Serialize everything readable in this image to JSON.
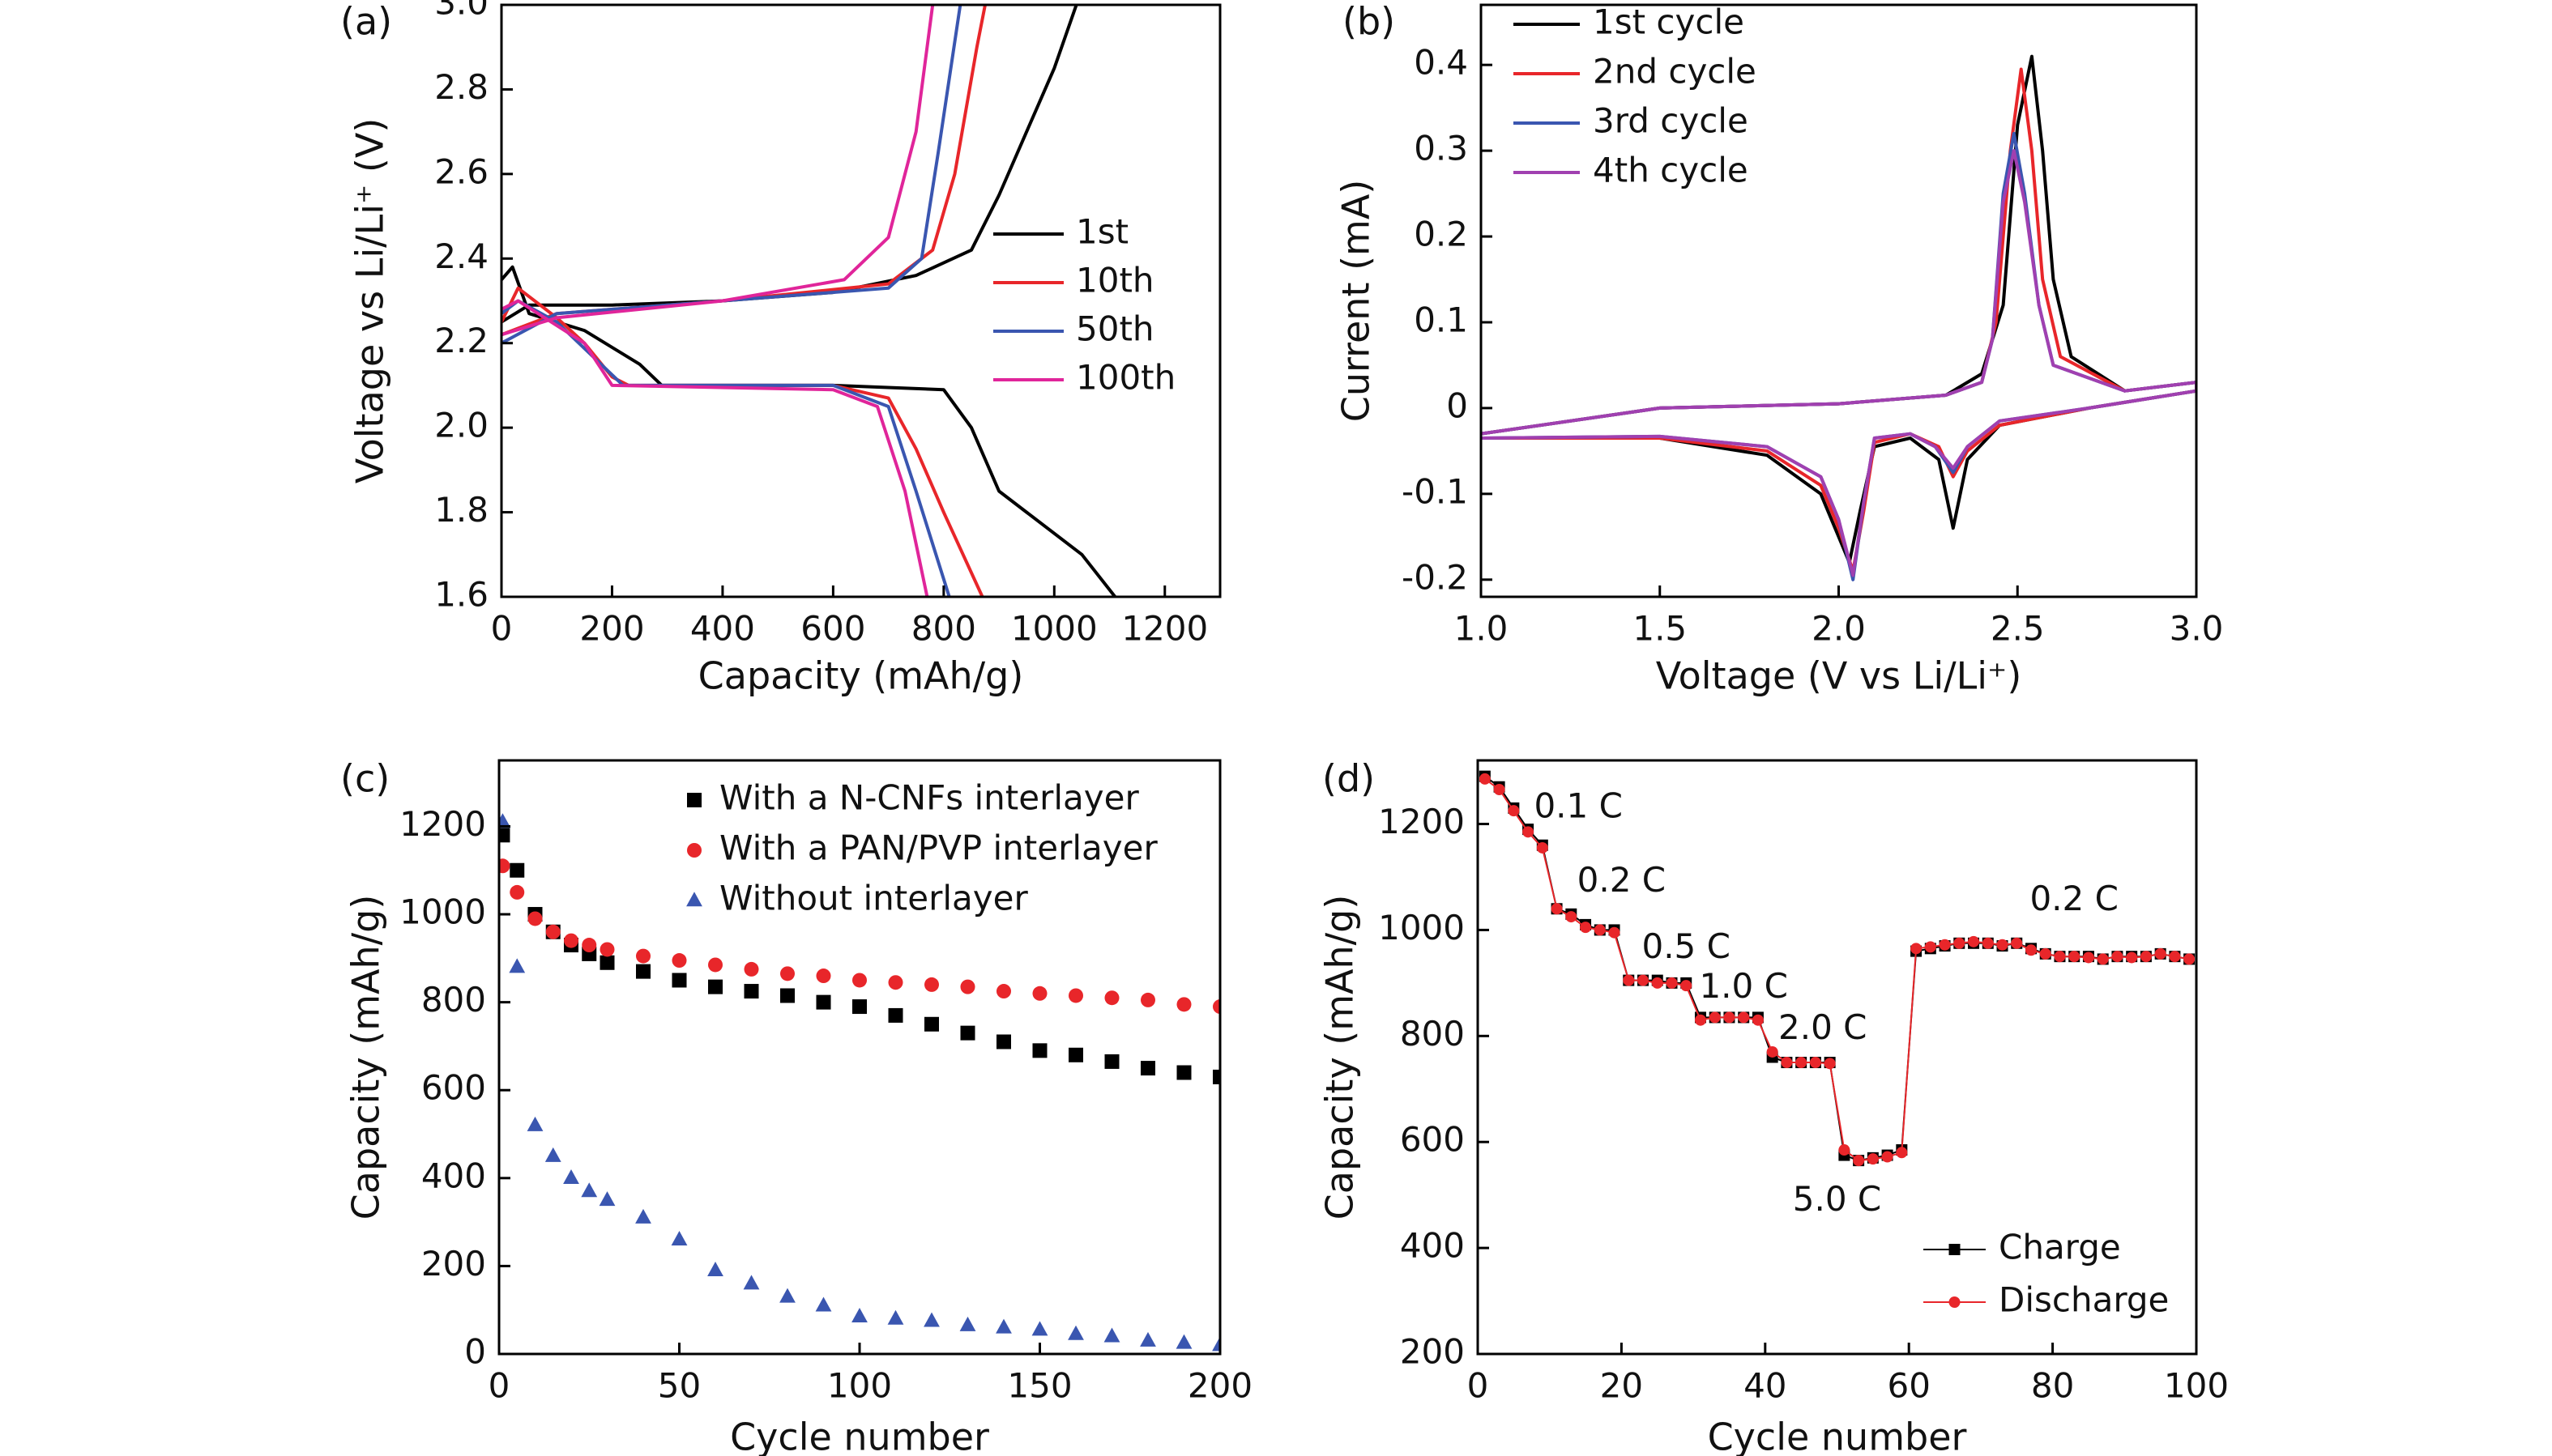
{
  "chart_data": [
    {
      "type": "line",
      "label": "(a)",
      "xlabel": "Capacity (mAh/g)",
      "ylabel": "Voltage vs Li/Li⁺ (V)",
      "xlim": [
        0,
        1300
      ],
      "ylim": [
        1.6,
        3.0
      ],
      "xticks": [
        0,
        200,
        400,
        600,
        800,
        1000,
        1200
      ],
      "yticks": [
        1.6,
        1.8,
        {
          "value": 2,
          "label": "2.0"
        },
        2.2,
        2.4,
        2.6,
        2.8,
        {
          "value": 3,
          "label": "3.0"
        }
      ],
      "series": [
        {
          "name": "1st",
          "color": "#000000",
          "x": [
            0,
            20,
            50,
            150,
            250,
            290,
            400,
            600,
            800,
            850,
            900,
            950,
            1050,
            1110,
            null,
            0,
            50,
            200,
            400,
            600,
            750,
            850,
            900,
            950,
            1000,
            1040
          ],
          "values": [
            2.35,
            2.38,
            2.27,
            2.23,
            2.15,
            2.1,
            2.1,
            2.1,
            2.09,
            2.0,
            1.85,
            1.8,
            1.7,
            1.6,
            null,
            2.25,
            2.29,
            2.29,
            2.3,
            2.32,
            2.36,
            2.42,
            2.55,
            2.7,
            2.85,
            3.0
          ]
        },
        {
          "name": "10th",
          "color": "#e8262a",
          "x": [
            0,
            30,
            100,
            150,
            200,
            230,
            600,
            700,
            750,
            800,
            870,
            null,
            0,
            100,
            400,
            700,
            780,
            820,
            860,
            875
          ],
          "values": [
            2.25,
            2.33,
            2.26,
            2.2,
            2.12,
            2.1,
            2.1,
            2.07,
            1.95,
            1.8,
            1.6,
            null,
            2.22,
            2.27,
            2.3,
            2.34,
            2.42,
            2.6,
            2.9,
            3.0
          ]
        },
        {
          "name": "50th",
          "color": "#3a56b0",
          "x": [
            0,
            30,
            100,
            180,
            220,
            600,
            700,
            750,
            810,
            null,
            0,
            100,
            400,
            700,
            760,
            790,
            830
          ],
          "values": [
            2.27,
            2.3,
            2.25,
            2.15,
            2.1,
            2.1,
            2.05,
            1.85,
            1.6,
            null,
            2.2,
            2.27,
            2.3,
            2.33,
            2.4,
            2.65,
            3.0
          ]
        },
        {
          "name": "100th",
          "color": "#e0259a",
          "x": [
            0,
            30,
            150,
            200,
            600,
            680,
            730,
            770,
            null,
            0,
            100,
            400,
            620,
            700,
            750,
            780
          ],
          "values": [
            2.28,
            2.3,
            2.2,
            2.1,
            2.09,
            2.05,
            1.85,
            1.6,
            null,
            2.22,
            2.26,
            2.3,
            2.35,
            2.45,
            2.7,
            3.0
          ]
        }
      ]
    },
    {
      "type": "line",
      "label": "(b)",
      "xlabel": "Voltage (V vs Li/Li⁺)",
      "ylabel": "Current (mA)",
      "xlim": [
        1.0,
        3.0
      ],
      "ylim": [
        -0.22,
        0.47
      ],
      "xticks": [
        {
          "value": 1,
          "label": "1.0"
        },
        1.5,
        {
          "value": 2,
          "label": "2.0"
        },
        2.5,
        {
          "value": 3,
          "label": "3.0"
        }
      ],
      "yticks": [
        -0.2,
        -0.1,
        0,
        0.1,
        0.2,
        0.3,
        0.4
      ],
      "series": [
        {
          "name": "1st cycle",
          "color": "#000000",
          "x": [
            1.0,
            1.5,
            1.8,
            1.95,
            2.0,
            2.03,
            2.06,
            2.1,
            2.2,
            2.28,
            2.32,
            2.36,
            2.45,
            2.7,
            3.0,
            3.0,
            2.8,
            2.65,
            2.6,
            2.57,
            2.54,
            2.5,
            2.46,
            2.4,
            2.3,
            2.0,
            1.5,
            1.0
          ],
          "values": [
            -0.035,
            -0.035,
            -0.055,
            -0.1,
            -0.15,
            -0.18,
            -0.12,
            -0.045,
            -0.035,
            -0.06,
            -0.14,
            -0.06,
            -0.02,
            0,
            0.02,
            0.03,
            0.02,
            0.06,
            0.15,
            0.3,
            0.41,
            0.33,
            0.12,
            0.04,
            0.015,
            0.005,
            0,
            -0.03
          ]
        },
        {
          "name": "2nd cycle",
          "color": "#e8262a",
          "x": [
            1.0,
            1.5,
            1.8,
            1.95,
            2.0,
            2.04,
            2.07,
            2.1,
            2.2,
            2.28,
            2.32,
            2.36,
            2.45,
            2.7,
            3.0,
            3.0,
            2.8,
            2.62,
            2.57,
            2.54,
            2.51,
            2.48,
            2.44,
            2.4,
            2.3,
            2.0,
            1.5,
            1.0
          ],
          "values": [
            -0.035,
            -0.035,
            -0.05,
            -0.09,
            -0.14,
            -0.19,
            -0.12,
            -0.04,
            -0.03,
            -0.045,
            -0.08,
            -0.05,
            -0.02,
            0,
            0.02,
            0.03,
            0.02,
            0.06,
            0.15,
            0.3,
            0.395,
            0.3,
            0.1,
            0.03,
            0.015,
            0.005,
            0,
            -0.03
          ]
        },
        {
          "name": "3rd cycle",
          "color": "#3a56b0",
          "x": [
            1.0,
            1.5,
            1.8,
            1.95,
            2.0,
            2.04,
            2.07,
            2.1,
            2.2,
            2.27,
            2.32,
            2.36,
            2.45,
            2.7,
            3.0,
            3.0,
            2.8,
            2.6,
            2.56,
            2.52,
            2.49,
            2.46,
            2.43,
            2.4,
            2.3,
            2.0,
            1.5,
            1.0
          ],
          "values": [
            -0.035,
            -0.033,
            -0.045,
            -0.08,
            -0.13,
            -0.2,
            -0.11,
            -0.035,
            -0.03,
            -0.045,
            -0.075,
            -0.045,
            -0.015,
            0,
            0.02,
            0.03,
            0.02,
            0.05,
            0.12,
            0.25,
            0.32,
            0.25,
            0.08,
            0.03,
            0.015,
            0.005,
            0,
            -0.03
          ]
        },
        {
          "name": "4th cycle",
          "color": "#a040b0",
          "x": [
            1.0,
            1.5,
            1.8,
            1.95,
            2.0,
            2.04,
            2.07,
            2.1,
            2.2,
            2.27,
            2.32,
            2.36,
            2.45,
            2.7,
            3.0,
            3.0,
            2.8,
            2.6,
            2.56,
            2.52,
            2.49,
            2.46,
            2.43,
            2.4,
            2.3,
            2.0,
            1.5,
            1.0
          ],
          "values": [
            -0.035,
            -0.033,
            -0.045,
            -0.08,
            -0.13,
            -0.195,
            -0.11,
            -0.035,
            -0.03,
            -0.045,
            -0.07,
            -0.045,
            -0.015,
            0,
            0.02,
            0.03,
            0.02,
            0.05,
            0.12,
            0.24,
            0.3,
            0.24,
            0.08,
            0.03,
            0.015,
            0.005,
            0,
            -0.03
          ]
        }
      ]
    },
    {
      "type": "scatter",
      "label": "(c)",
      "xlabel": "Cycle number",
      "ylabel": "Capacity (mAh/g)",
      "xlim": [
        0,
        200
      ],
      "ylim": [
        0,
        1350
      ],
      "xticks": [
        0,
        50,
        100,
        150,
        200
      ],
      "yticks": [
        0,
        200,
        400,
        600,
        800,
        1000,
        1200
      ],
      "x": [
        1,
        5,
        10,
        15,
        20,
        25,
        30,
        40,
        50,
        60,
        70,
        80,
        90,
        100,
        110,
        120,
        130,
        140,
        150,
        160,
        170,
        180,
        190,
        200
      ],
      "series": [
        {
          "name": "With a N-CNFs interlayer",
          "color": "#000000",
          "marker": "square",
          "values": [
            1180,
            1100,
            1000,
            960,
            930,
            910,
            890,
            870,
            850,
            835,
            825,
            815,
            800,
            790,
            770,
            750,
            730,
            710,
            690,
            680,
            665,
            650,
            640,
            630
          ]
        },
        {
          "name": "With a PAN/PVP interlayer",
          "color": "#e8262a",
          "marker": "circle",
          "values": [
            1110,
            1050,
            990,
            960,
            940,
            930,
            920,
            905,
            895,
            885,
            875,
            865,
            860,
            850,
            845,
            840,
            835,
            825,
            820,
            815,
            810,
            805,
            795,
            790
          ]
        },
        {
          "name": "Without interlayer",
          "color": "#3a56b0",
          "marker": "triangle",
          "values": [
            1210,
            880,
            520,
            450,
            400,
            370,
            350,
            310,
            260,
            190,
            160,
            130,
            110,
            85,
            80,
            75,
            65,
            60,
            55,
            45,
            40,
            30,
            25,
            20
          ]
        }
      ]
    },
    {
      "type": "line",
      "label": "(d)",
      "xlabel": "Cycle number",
      "ylabel": "Capacity (mAh/g)",
      "xlim": [
        0,
        100
      ],
      "ylim": [
        200,
        1320
      ],
      "xticks": [
        0,
        20,
        40,
        60,
        80,
        100
      ],
      "yticks": [
        200,
        400,
        600,
        800,
        1000,
        1200
      ],
      "x": [
        1,
        3,
        5,
        7,
        9,
        11,
        13,
        15,
        17,
        19,
        21,
        23,
        25,
        27,
        29,
        31,
        33,
        35,
        37,
        39,
        41,
        43,
        45,
        47,
        49,
        51,
        53,
        55,
        57,
        59,
        61,
        63,
        65,
        67,
        69,
        71,
        73,
        75,
        77,
        79,
        81,
        83,
        85,
        87,
        89,
        91,
        93,
        95,
        97,
        99
      ],
      "annotations": [
        "0.1 C",
        "0.2 C",
        "0.5 C",
        "1.0 C",
        "2.0 C",
        "5.0 C",
        "0.2 C"
      ],
      "series": [
        {
          "name": "Charge",
          "color": "#000000",
          "marker": "square",
          "values": [
            1290,
            1270,
            1230,
            1190,
            1160,
            1040,
            1030,
            1010,
            1000,
            1000,
            905,
            905,
            905,
            900,
            900,
            835,
            835,
            835,
            835,
            835,
            760,
            750,
            750,
            750,
            750,
            575,
            565,
            570,
            575,
            585,
            960,
            965,
            970,
            975,
            975,
            975,
            970,
            975,
            965,
            955,
            950,
            950,
            950,
            945,
            950,
            950,
            950,
            955,
            950,
            945
          ]
        },
        {
          "name": "Discharge",
          "color": "#e8262a",
          "marker": "circle",
          "values": [
            1285,
            1265,
            1225,
            1185,
            1155,
            1040,
            1025,
            1005,
            1000,
            995,
            905,
            905,
            900,
            900,
            895,
            830,
            835,
            835,
            835,
            830,
            770,
            750,
            750,
            750,
            748,
            585,
            565,
            568,
            572,
            580,
            965,
            968,
            972,
            975,
            978,
            975,
            972,
            975,
            962,
            955,
            950,
            950,
            948,
            945,
            950,
            948,
            950,
            955,
            950,
            945
          ]
        }
      ]
    }
  ]
}
